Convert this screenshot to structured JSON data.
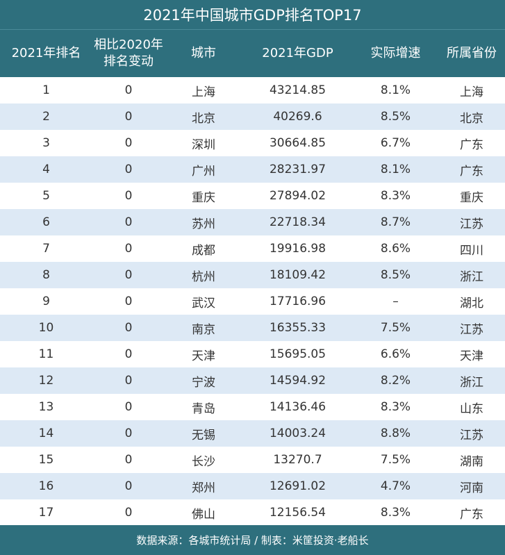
{
  "chart_data": {
    "type": "table",
    "title": "2021年中国城市GDP排名TOP17",
    "columns": [
      "2021年排名",
      "相比2020年\n排名变动",
      "城市",
      "2021年GDP",
      "实际增速",
      "所属省份"
    ],
    "rows": [
      [
        "1",
        "0",
        "上海",
        "43214.85",
        "8.1%",
        "上海"
      ],
      [
        "2",
        "0",
        "北京",
        "40269.6",
        "8.5%",
        "北京"
      ],
      [
        "3",
        "0",
        "深圳",
        "30664.85",
        "6.7%",
        "广东"
      ],
      [
        "4",
        "0",
        "广州",
        "28231.97",
        "8.1%",
        "广东"
      ],
      [
        "5",
        "0",
        "重庆",
        "27894.02",
        "8.3%",
        "重庆"
      ],
      [
        "6",
        "0",
        "苏州",
        "22718.34",
        "8.7%",
        "江苏"
      ],
      [
        "7",
        "0",
        "成都",
        "19916.98",
        "8.6%",
        "四川"
      ],
      [
        "8",
        "0",
        "杭州",
        "18109.42",
        "8.5%",
        "浙江"
      ],
      [
        "9",
        "0",
        "武汉",
        "17716.96",
        "–",
        "湖北"
      ],
      [
        "10",
        "0",
        "南京",
        "16355.33",
        "7.5%",
        "江苏"
      ],
      [
        "11",
        "0",
        "天津",
        "15695.05",
        "6.6%",
        "天津"
      ],
      [
        "12",
        "0",
        "宁波",
        "14594.92",
        "8.2%",
        "浙江"
      ],
      [
        "13",
        "0",
        "青岛",
        "14136.46",
        "8.3%",
        "山东"
      ],
      [
        "14",
        "0",
        "无锡",
        "14003.24",
        "8.8%",
        "江苏"
      ],
      [
        "15",
        "0",
        "长沙",
        "13270.7",
        "7.5%",
        "湖南"
      ],
      [
        "16",
        "0",
        "郑州",
        "12691.02",
        "4.7%",
        "河南"
      ],
      [
        "17",
        "0",
        "佛山",
        "12156.54",
        "8.3%",
        "广东"
      ]
    ],
    "source": "数据来源：各城市统计局 / 制表：米筐投资·老船长"
  },
  "colors": {
    "header_bg": "#2e6f7d",
    "row_alt_bg": "#dde9f5",
    "text": "#333333"
  }
}
